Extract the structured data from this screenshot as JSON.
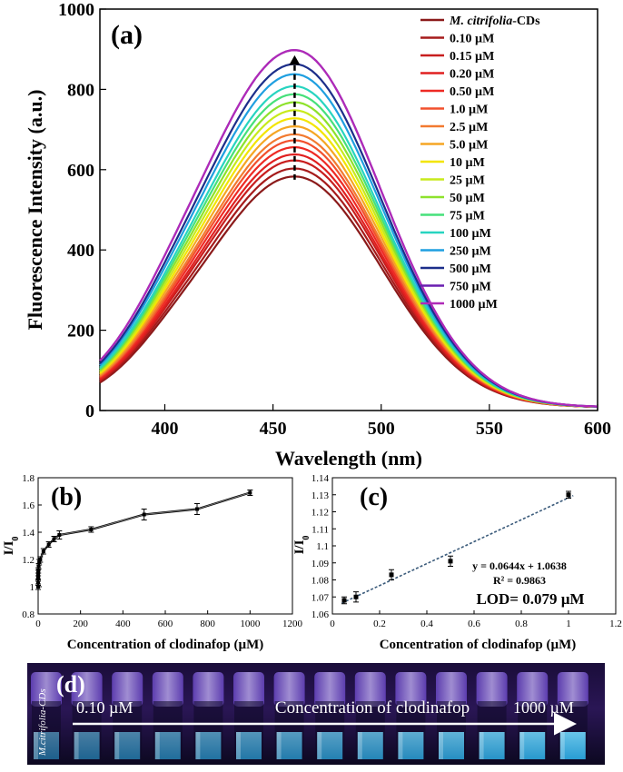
{
  "chart_data": [
    {
      "panel_label": "(a)",
      "type": "line",
      "xlabel": "Wavelength (nm)",
      "ylabel": "Fluorescence Intensity (a.u.)",
      "xlim": [
        370,
        600
      ],
      "ylim": [
        0,
        1000
      ],
      "xticks": [
        "400",
        "450",
        "500",
        "550",
        "600"
      ],
      "yticks": [
        "0",
        "200",
        "400",
        "600",
        "800",
        "1000"
      ],
      "grid": false,
      "legend_position": "top-right",
      "legend_entries": [
        {
          "pre": "M. citrifolia",
          "post": "-CDs",
          "italic_pre": true
        },
        {
          "pre": "0.10 µM",
          "post": ""
        },
        {
          "pre": "0.15 µM",
          "post": ""
        },
        {
          "pre": "0.20 µM",
          "post": ""
        },
        {
          "pre": "0.50 µM",
          "post": ""
        },
        {
          "pre": "1.0 µM",
          "post": ""
        },
        {
          "pre": "2.5 µM",
          "post": ""
        },
        {
          "pre": "5.0 µM",
          "post": ""
        },
        {
          "pre": "10 µM",
          "post": ""
        },
        {
          "pre": "25 µM",
          "post": ""
        },
        {
          "pre": "50 µM",
          "post": ""
        },
        {
          "pre": "75 µM",
          "post": ""
        },
        {
          "pre": "100 µM",
          "post": ""
        },
        {
          "pre": "250 µM",
          "post": ""
        },
        {
          "pre": "500 µM",
          "post": ""
        },
        {
          "pre": "750 µM",
          "post": ""
        },
        {
          "pre": "1000 µM",
          "post": ""
        }
      ],
      "series_colors": [
        "#8b1a1a",
        "#a61b1b",
        "#c81e1e",
        "#e02020",
        "#ee2a24",
        "#f2502d",
        "#f27a30",
        "#f5a623",
        "#f3e500",
        "#c8ea1c",
        "#8ee22c",
        "#46e07a",
        "#27d4c0",
        "#1f9fe0",
        "#1c2e8a",
        "#6a1fb0",
        "#b02ab8"
      ],
      "series": [
        {
          "name": "M. citrifolia-CDs",
          "peak_x": 460,
          "peak_y": 575
        },
        {
          "name": "0.10 µM",
          "peak_x": 460,
          "peak_y": 595
        },
        {
          "name": "0.15 µM",
          "peak_x": 460,
          "peak_y": 615
        },
        {
          "name": "0.20 µM",
          "peak_x": 460,
          "peak_y": 630
        },
        {
          "name": "0.50 µM",
          "peak_x": 460,
          "peak_y": 648
        },
        {
          "name": "1.0 µM",
          "peak_x": 460,
          "peak_y": 665
        },
        {
          "name": "2.5 µM",
          "peak_x": 460,
          "peak_y": 680
        },
        {
          "name": "5.0 µM",
          "peak_x": 460,
          "peak_y": 700
        },
        {
          "name": "10 µM",
          "peak_x": 460,
          "peak_y": 720
        },
        {
          "name": "25 µM",
          "peak_x": 460,
          "peak_y": 740
        },
        {
          "name": "50 µM",
          "peak_x": 460,
          "peak_y": 760
        },
        {
          "name": "75 µM",
          "peak_x": 460,
          "peak_y": 780
        },
        {
          "name": "100 µM",
          "peak_x": 460,
          "peak_y": 800
        },
        {
          "name": "250 µM",
          "peak_x": 460,
          "peak_y": 830
        },
        {
          "name": "500 µM",
          "peak_x": 460,
          "peak_y": 855
        },
        {
          "name": "750 µM",
          "peak_x": 460,
          "peak_y": 890
        },
        {
          "name": "1000 µM",
          "peak_x": 460,
          "peak_y": 890
        }
      ],
      "annotation": "dashed upward arrow at 460 nm from ~575 to ~885"
    },
    {
      "panel_label": "(b)",
      "type": "line",
      "xlabel": "Concentration of clodinafop (µM)",
      "ylabel_main": "I/I",
      "ylabel_sub": "0",
      "xlim": [
        0,
        1200
      ],
      "ylim": [
        0.8,
        1.8
      ],
      "xticks": [
        "0",
        "200",
        "400",
        "600",
        "800",
        "1000",
        "1200"
      ],
      "yticks": [
        "0.8",
        "1",
        "1.2",
        "1.4",
        "1.6",
        "1.8"
      ],
      "x": [
        0,
        0.1,
        0.15,
        0.2,
        0.5,
        1.0,
        2.5,
        5.0,
        10,
        25,
        50,
        75,
        100,
        250,
        500,
        750,
        1000
      ],
      "y": [
        1.0,
        1.03,
        1.06,
        1.08,
        1.1,
        1.12,
        1.15,
        1.18,
        1.2,
        1.26,
        1.31,
        1.35,
        1.38,
        1.42,
        1.53,
        1.57,
        1.69
      ],
      "err": [
        0.02,
        0.02,
        0.02,
        0.02,
        0.02,
        0.02,
        0.02,
        0.02,
        0.02,
        0.02,
        0.02,
        0.02,
        0.03,
        0.02,
        0.04,
        0.04,
        0.02
      ]
    },
    {
      "panel_label": "(c)",
      "type": "scatter",
      "xlabel": "Concentration of clodinafop (µM)",
      "ylabel_main": "I/I",
      "ylabel_sub": "0",
      "xlim": [
        0,
        1.2
      ],
      "ylim": [
        1.06,
        1.14
      ],
      "xticks": [
        "0",
        "0.2",
        "0.4",
        "0.6",
        "0.8",
        "1",
        "1.2"
      ],
      "yticks": [
        "1.06",
        "1.07",
        "1.08",
        "1.09",
        "1.1",
        "1.11",
        "1.12",
        "1.13",
        "1.14"
      ],
      "x": [
        0.05,
        0.1,
        0.25,
        0.5,
        1.0
      ],
      "y": [
        1.068,
        1.07,
        1.083,
        1.091,
        1.13
      ],
      "err": [
        0.002,
        0.003,
        0.003,
        0.003,
        0.002
      ],
      "fit": {
        "slope": 0.0644,
        "intercept": 1.0638
      },
      "equation": "y = 0.0644x + 1.0638",
      "r2": "R² = 0.9863",
      "lod": "LOD= 0.079 µM"
    }
  ],
  "photo": {
    "panel_label": "(d)",
    "vial_count": 14,
    "first_vial_label": "M.citrifolia-CDs",
    "start_label": "0.10 µM",
    "middle_label": "Concentration of clodinafop",
    "end_label": "1000 µM"
  }
}
